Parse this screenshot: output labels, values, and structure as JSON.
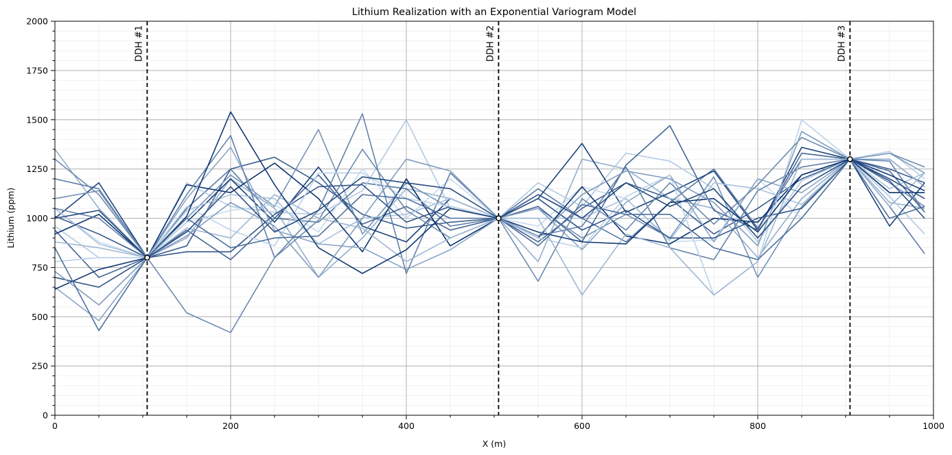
{
  "chart_data": {
    "type": "line",
    "title": "Lithium Realization with an Exponential Variogram Model",
    "xlabel": "X (m)",
    "ylabel": "Lithium (ppm)",
    "xlim": [
      0,
      1000
    ],
    "ylim": [
      0,
      2000
    ],
    "x_ticks": [
      0,
      200,
      400,
      600,
      800,
      1000
    ],
    "y_ticks": [
      0,
      250,
      500,
      750,
      1000,
      1250,
      1500,
      1750,
      2000
    ],
    "x_tick_labels": [
      "0",
      "200",
      "400",
      "600",
      "800",
      "1000"
    ],
    "y_tick_labels": [
      "0",
      "250",
      "500",
      "750",
      "1000",
      "1250",
      "1500",
      "1750",
      "2000"
    ],
    "grid": true,
    "colormap": "Blues",
    "drillholes": [
      {
        "label": "DDH #1",
        "x": 105,
        "y": 800
      },
      {
        "label": "DDH #2",
        "x": 505,
        "y": 1000
      },
      {
        "label": "DDH #3",
        "x": 905,
        "y": 1300
      }
    ],
    "x": [
      0,
      50,
      105,
      150,
      200,
      250,
      300,
      350,
      400,
      450,
      505,
      550,
      600,
      650,
      700,
      750,
      800,
      850,
      905,
      950,
      990
    ],
    "series": [
      {
        "values": [
          1010,
          920,
          800,
          860,
          1250,
          1310,
          1180,
          1020,
          950,
          980,
          1000,
          880,
          1050,
          1180,
          1100,
          920,
          1050,
          1200,
          1300,
          1250,
          1180
        ]
      },
      {
        "values": [
          1350,
          1050,
          800,
          900,
          1200,
          1050,
          700,
          900,
          1150,
          1100,
          1000,
          780,
          1300,
          1250,
          1100,
          1050,
          800,
          1100,
          1300,
          1080,
          1050
        ]
      },
      {
        "values": [
          1200,
          1150,
          800,
          1050,
          1250,
          1000,
          980,
          1180,
          1150,
          960,
          1000,
          1150,
          1000,
          880,
          1080,
          1250,
          950,
          1300,
          1300,
          1060,
          820
        ]
      },
      {
        "values": [
          960,
          800,
          800,
          1180,
          1060,
          1030,
          1020,
          1140,
          1500,
          1050,
          1000,
          1180,
          1060,
          1330,
          1290,
          1150,
          880,
          1190,
          1300,
          1110,
          920
        ]
      },
      {
        "values": [
          1000,
          1180,
          800,
          980,
          1200,
          980,
          1260,
          960,
          880,
          1100,
          1000,
          1100,
          1380,
          1030,
          1130,
          1240,
          940,
          1360,
          1300,
          960,
          1180
        ]
      },
      {
        "values": [
          1100,
          1140,
          800,
          1000,
          1220,
          1060,
          1450,
          920,
          1180,
          1050,
          1000,
          1050,
          900,
          1020,
          900,
          1210,
          700,
          1060,
          1300,
          1180,
          1060
        ]
      },
      {
        "values": [
          1050,
          880,
          800,
          980,
          1040,
          1070,
          930,
          1250,
          1000,
          1200,
          1000,
          960,
          1160,
          1100,
          880,
          890,
          1200,
          1000,
          1300,
          1200,
          1100
        ]
      },
      {
        "values": [
          940,
          700,
          800,
          940,
          790,
          1000,
          1220,
          970,
          1060,
          940,
          1000,
          1060,
          880,
          1270,
          1470,
          1040,
          940,
          1330,
          1300,
          1240,
          1030
        ]
      },
      {
        "values": [
          1050,
          870,
          800,
          1040,
          1120,
          1100,
          870,
          1000,
          1020,
          1100,
          1000,
          1000,
          1000,
          1100,
          890,
          1180,
          1150,
          1070,
          1300,
          1150,
          1230
        ]
      },
      {
        "values": [
          920,
          1020,
          800,
          1170,
          1130,
          1280,
          1100,
          830,
          1200,
          860,
          1000,
          900,
          1160,
          910,
          870,
          1000,
          980,
          1220,
          1300,
          1130,
          1130
        ]
      },
      {
        "values": [
          650,
          480,
          800,
          1100,
          1360,
          940,
          870,
          850,
          740,
          840,
          1000,
          1050,
          840,
          1080,
          1220,
          880,
          1200,
          1130,
          1300,
          1300,
          1160
        ]
      },
      {
        "values": [
          1050,
          1000,
          800,
          1120,
          1420,
          800,
          1040,
          1530,
          720,
          1230,
          1000,
          910,
          960,
          1260,
          850,
          790,
          1140,
          1260,
          1300,
          1290,
          1030
        ]
      },
      {
        "values": [
          700,
          650,
          800,
          830,
          830,
          1020,
          1160,
          1170,
          980,
          1060,
          1000,
          1100,
          940,
          1040,
          900,
          900,
          1000,
          1050,
          1300,
          1200,
          1100
        ]
      },
      {
        "values": [
          780,
          800,
          800,
          1060,
          940,
          860,
          1230,
          1230,
          1100,
          1060,
          1000,
          900,
          850,
          1110,
          1220,
          610,
          780,
          1500,
          1300,
          1340,
          1200
        ]
      },
      {
        "values": [
          1300,
          1120,
          800,
          520,
          420,
          800,
          990,
          1350,
          1040,
          900,
          1000,
          680,
          1100,
          940,
          1180,
          970,
          1170,
          1410,
          1300,
          1330,
          1260
        ]
      },
      {
        "values": [
          880,
          850,
          800,
          950,
          900,
          1120,
          1000,
          950,
          780,
          900,
          1000,
          1000,
          610,
          920,
          850,
          610,
          780,
          1300,
          1300,
          1060,
          1230
        ]
      },
      {
        "values": [
          640,
          740,
          800,
          1010,
          1540,
          1170,
          850,
          720,
          840,
          1050,
          1000,
          930,
          880,
          870,
          1080,
          1100,
          930,
          1220,
          1300,
          1220,
          1140
        ]
      },
      {
        "values": [
          730,
          560,
          800,
          910,
          1080,
          960,
          700,
          1000,
          1300,
          1240,
          1000,
          910,
          1120,
          1240,
          1200,
          1080,
          860,
          1440,
          1300,
          1330,
          1230
        ]
      },
      {
        "values": [
          850,
          430,
          800,
          1000,
          850,
          900,
          910,
          1120,
          1100,
          1000,
          1000,
          860,
          1070,
          1020,
          1020,
          850,
          790,
          1000,
          1300,
          1000,
          1060
        ]
      },
      {
        "values": [
          1000,
          1040,
          800,
          930,
          1160,
          930,
          1040,
          1210,
          1180,
          1150,
          1000,
          1120,
          1000,
          1180,
          1060,
          1150,
          900,
          1160,
          1300,
          1190,
          1000
        ]
      }
    ]
  }
}
